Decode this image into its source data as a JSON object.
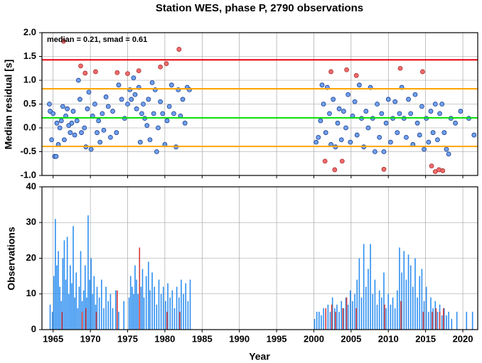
{
  "chart_data": [
    {
      "type": "scatter",
      "title": "Station WES, phase P, 2790 observations",
      "ylabel": "Median residual [s]",
      "annotation": "median = 0.21, smad = 0.61",
      "xlim": [
        1963.5,
        2022
      ],
      "ylim": [
        -1,
        2
      ],
      "yticks": [
        {
          "value": -1,
          "label": "-1.0"
        },
        -0.5,
        {
          "value": 0,
          "label": "0.0"
        },
        0.5,
        {
          "value": 1,
          "label": "1.0"
        },
        1.5,
        {
          "value": 2,
          "label": "2.0"
        }
      ],
      "grid": true,
      "hlines": [
        {
          "value": 1.43,
          "color": "#e8000b"
        },
        {
          "value": 0.82,
          "color": "#ffa500"
        },
        {
          "value": 0.21,
          "color": "#00e000"
        },
        {
          "value": -0.39,
          "color": "#ffa500"
        }
      ],
      "series": [
        {
          "color": "#6fa0f0",
          "edge": "#1a3c8c",
          "x": [
            1964.5,
            1964.6,
            1964.8,
            1965.0,
            1965.2,
            1965.4,
            1965.5,
            1965.7,
            1965.9,
            1966.1,
            1966.3,
            1966.5,
            1966.7,
            1966.9,
            1967.1,
            1967.3,
            1967.5,
            1967.7,
            1967.9,
            1968.2,
            1968.4,
            1968.6,
            1968.8,
            1969.2,
            1969.4,
            1969.6,
            1969.8,
            1970.1,
            1970.3,
            1970.6,
            1970.9,
            1971.1,
            1971.3,
            1971.6,
            1971.8,
            1972.1,
            1972.4,
            1972.7,
            1973.0,
            1973.5,
            1973.8,
            1974.2,
            1974.6,
            1975.0,
            1975.3,
            1975.5,
            1975.8,
            1976.0,
            1976.2,
            1976.5,
            1976.7,
            1976.9,
            1977.1,
            1977.3,
            1977.6,
            1977.8,
            1978.0,
            1978.3,
            1978.5,
            1978.7,
            1978.9,
            1979.1,
            1979.4,
            1979.7,
            1980.0,
            1980.3,
            1980.6,
            1980.9,
            1981.2,
            1981.5,
            1981.8,
            1982.1,
            1982.4,
            1982.7,
            1983.0,
            1983.3,
            2000.3,
            2000.6,
            2000.9,
            2001.1,
            2001.3,
            2001.6,
            2001.8,
            2002.1,
            2002.3,
            2002.6,
            2002.9,
            2003.2,
            2003.4,
            2003.7,
            2004.0,
            2004.3,
            2004.6,
            2004.9,
            2005.2,
            2005.5,
            2005.8,
            2006.1,
            2006.4,
            2006.7,
            2007.0,
            2007.3,
            2007.6,
            2007.9,
            2008.2,
            2008.5,
            2008.8,
            2009.1,
            2009.4,
            2009.7,
            2010.0,
            2010.3,
            2010.6,
            2010.9,
            2011.2,
            2011.5,
            2011.8,
            2012.1,
            2012.4,
            2012.7,
            2013.0,
            2013.3,
            2013.6,
            2013.9,
            2014.2,
            2014.5,
            2014.8,
            2015.1,
            2015.4,
            2015.7,
            2016.0,
            2016.3,
            2016.6,
            2016.9,
            2017.2,
            2017.5,
            2017.8,
            2018.1,
            2018.4,
            2019.0,
            2019.7,
            2020.8,
            2021.5
          ],
          "values": [
            0.5,
            0.35,
            -0.25,
            0.3,
            -0.6,
            -0.6,
            0.1,
            -0.35,
            0.0,
            0.15,
            0.45,
            -0.25,
            0.25,
            0.4,
            0.05,
            -0.1,
            0.1,
            0.35,
            -0.15,
            0.15,
            1.0,
            0.6,
            -0.1,
            0.0,
            -0.4,
            0.4,
            0.75,
            -0.45,
            0.25,
            0.5,
            -0.1,
            0.15,
            -0.3,
            0.3,
            -0.05,
            0.65,
            0.45,
            -0.2,
            0.35,
            -0.1,
            0.9,
            0.6,
            0.2,
            0.5,
            0.8,
            0.6,
            1.05,
            0.7,
            0.4,
            0.85,
            -0.3,
            0.3,
            0.5,
            0.2,
            0.05,
            0.6,
            -0.25,
            0.95,
            0.3,
            0.8,
            -0.5,
            0.0,
            0.55,
            0.3,
            -0.35,
            0.15,
            0.45,
            0.9,
            0.3,
            -0.4,
            0.8,
            0.25,
            0.6,
            0.1,
            0.85,
            0.8,
            -0.3,
            -0.2,
            0.15,
            0.9,
            0.5,
            -0.1,
            0.85,
            0.3,
            -0.35,
            0.6,
            -0.4,
            0.1,
            0.4,
            -0.25,
            0.35,
            0.0,
            0.7,
            -0.3,
            0.25,
            0.55,
            -0.15,
            0.9,
            0.2,
            -0.4,
            0.35,
            0.0,
            0.85,
            0.2,
            -0.5,
            0.5,
            -0.2,
            0.3,
            -0.5,
            0.1,
            0.6,
            -0.3,
            0.2,
            0.55,
            -0.1,
            0.3,
            0.85,
            0.2,
            -0.2,
            0.6,
            0.3,
            -0.35,
            0.7,
            0.1,
            -0.15,
            0.45,
            -0.45,
            0.2,
            -0.3,
            0.35,
            -0.1,
            0.5,
            -0.25,
            0.3,
            0.5,
            -0.1,
            -0.45,
            -0.55,
            0.2,
            0.1,
            0.35,
            0.2,
            -0.15
          ]
        },
        {
          "color": "#f26b6b",
          "edge": "#a83232",
          "x": [
            1966.4,
            1968.7,
            1969.3,
            1970.7,
            1973.6,
            1975.0,
            1976.5,
            1979.4,
            1980.2,
            1981.9,
            2001.5,
            2002.3,
            2002.8,
            2003.8,
            2004.4,
            2005.7,
            2009.4,
            2011.6,
            2014.6,
            2015.8,
            2016.3,
            2016.8,
            2017.3
          ],
          "values": [
            1.82,
            1.3,
            1.15,
            1.18,
            1.16,
            1.14,
            1.2,
            1.28,
            1.35,
            1.65,
            -0.7,
            1.18,
            -0.88,
            -0.7,
            1.22,
            1.1,
            -0.87,
            1.25,
            1.18,
            -0.8,
            -0.92,
            -0.88,
            -0.9
          ]
        }
      ]
    },
    {
      "type": "bar",
      "xlabel": "Year",
      "ylabel": "Observations",
      "xlim": [
        1963.5,
        2022
      ],
      "ylim": [
        0,
        40
      ],
      "xticks": [
        1965,
        1970,
        1975,
        1980,
        1985,
        1990,
        1995,
        2000,
        2005,
        2010,
        2015,
        2020
      ],
      "yticks": [
        0,
        10,
        20,
        30,
        40
      ],
      "grid": true,
      "series": [
        {
          "color": "#2e8ff0",
          "x": [
            1964.6,
            1964.9,
            1965.1,
            1965.3,
            1965.5,
            1965.7,
            1965.9,
            1966.1,
            1966.3,
            1966.5,
            1966.7,
            1966.9,
            1967.1,
            1967.3,
            1967.5,
            1967.7,
            1967.9,
            1968.1,
            1968.3,
            1968.5,
            1968.7,
            1968.9,
            1969.1,
            1969.3,
            1969.5,
            1969.7,
            1969.9,
            1970.1,
            1970.3,
            1970.5,
            1970.7,
            1970.9,
            1971.2,
            1971.5,
            1971.8,
            1972.1,
            1972.4,
            1972.7,
            1973.0,
            1973.4,
            1973.8,
            1974.5,
            1975.2,
            1975.4,
            1975.6,
            1975.8,
            1976.0,
            1976.2,
            1976.4,
            1976.8,
            1977.0,
            1977.2,
            1977.5,
            1977.8,
            1978.0,
            1978.3,
            1978.6,
            1978.9,
            1979.2,
            1979.5,
            1979.8,
            1980.1,
            1980.4,
            1980.7,
            1981.0,
            1981.3,
            1981.6,
            1981.9,
            1982.2,
            1982.5,
            1982.8,
            1983.1,
            1983.4,
            2000.1,
            2000.4,
            2000.7,
            2001.0,
            2001.3,
            2001.6,
            2001.9,
            2002.2,
            2002.5,
            2002.8,
            2003.1,
            2003.4,
            2003.7,
            2004.0,
            2004.3,
            2004.6,
            2004.9,
            2005.2,
            2005.5,
            2005.8,
            2006.1,
            2006.4,
            2006.7,
            2007.0,
            2007.3,
            2007.6,
            2007.9,
            2008.2,
            2008.5,
            2008.8,
            2009.1,
            2009.4,
            2009.7,
            2010.0,
            2010.3,
            2010.6,
            2010.9,
            2011.2,
            2011.5,
            2011.8,
            2012.1,
            2012.4,
            2012.7,
            2013.0,
            2013.3,
            2013.6,
            2013.9,
            2014.2,
            2014.5,
            2014.8,
            2015.1,
            2015.4,
            2015.7,
            2016.0,
            2016.3,
            2016.6,
            2016.9,
            2017.2,
            2017.5,
            2017.8,
            2018.1,
            2018.5,
            2019.2,
            2020.5,
            2021.3
          ],
          "values": [
            7,
            5,
            15,
            31,
            18,
            22,
            12,
            8,
            20,
            25,
            14,
            26,
            10,
            18,
            13,
            29,
            9,
            16,
            6,
            12,
            22,
            8,
            11,
            18,
            9,
            32,
            14,
            20,
            10,
            15,
            7,
            12,
            9,
            14,
            6,
            12,
            8,
            10,
            6,
            11,
            5,
            8,
            9,
            15,
            12,
            10,
            18,
            14,
            10,
            12,
            17,
            9,
            15,
            19,
            11,
            16,
            12,
            7,
            14,
            10,
            12,
            8,
            13,
            9,
            11,
            6,
            12,
            9,
            14,
            10,
            13,
            8,
            14,
            3,
            5,
            5,
            4,
            6,
            5,
            7,
            5,
            9,
            6,
            7,
            5,
            8,
            6,
            9,
            7,
            11,
            8,
            10,
            14,
            20,
            9,
            24,
            12,
            17,
            24,
            10,
            14,
            7,
            11,
            9,
            16,
            6,
            10,
            7,
            9,
            6,
            11,
            23,
            16,
            22,
            14,
            21,
            18,
            12,
            20,
            9,
            15,
            17,
            8,
            12,
            5,
            9,
            6,
            8,
            5,
            7,
            4,
            6,
            4,
            5,
            3,
            5,
            5,
            5
          ]
        },
        {
          "color": "#d43a3a",
          "x": [
            1966.2,
            1968.9,
            1969.4,
            1970.8,
            1973.6,
            1976.6,
            1980.3,
            1982.0,
            2001.6,
            2002.4,
            2002.9,
            2003.9,
            2004.4,
            2005.7,
            2009.5,
            2011.7,
            2014.7,
            2015.9,
            2016.4,
            2016.9,
            2017.4
          ],
          "values": [
            5,
            5,
            6,
            5,
            11,
            23,
            5,
            5,
            6,
            7,
            5,
            6,
            9,
            6,
            7,
            8,
            5,
            5,
            6,
            5,
            6
          ]
        }
      ]
    }
  ]
}
